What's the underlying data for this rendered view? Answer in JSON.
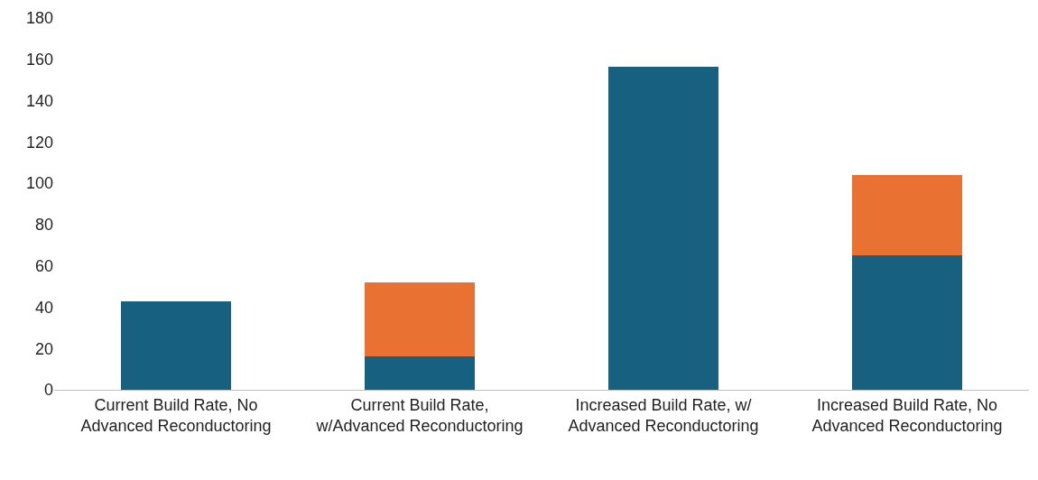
{
  "chart_data": {
    "type": "bar",
    "stacked": true,
    "categories": [
      "Current Build Rate, No Advanced Reconductoring",
      "Current Build Rate, w/Advanced Reconductoring",
      "Increased Build Rate, w/ Advanced Reconductoring",
      "Increased Build Rate, No Advanced Reconductoring"
    ],
    "series": [
      {
        "color": "#17607f",
        "values": [
          43,
          16,
          156.5,
          65
        ]
      },
      {
        "color": "#e97132",
        "values": [
          0,
          36,
          0,
          39
        ]
      }
    ],
    "ylim": [
      0,
      180
    ],
    "yticks": [
      0,
      20,
      40,
      60,
      80,
      100,
      120,
      140,
      160,
      180
    ],
    "grid": false
  }
}
